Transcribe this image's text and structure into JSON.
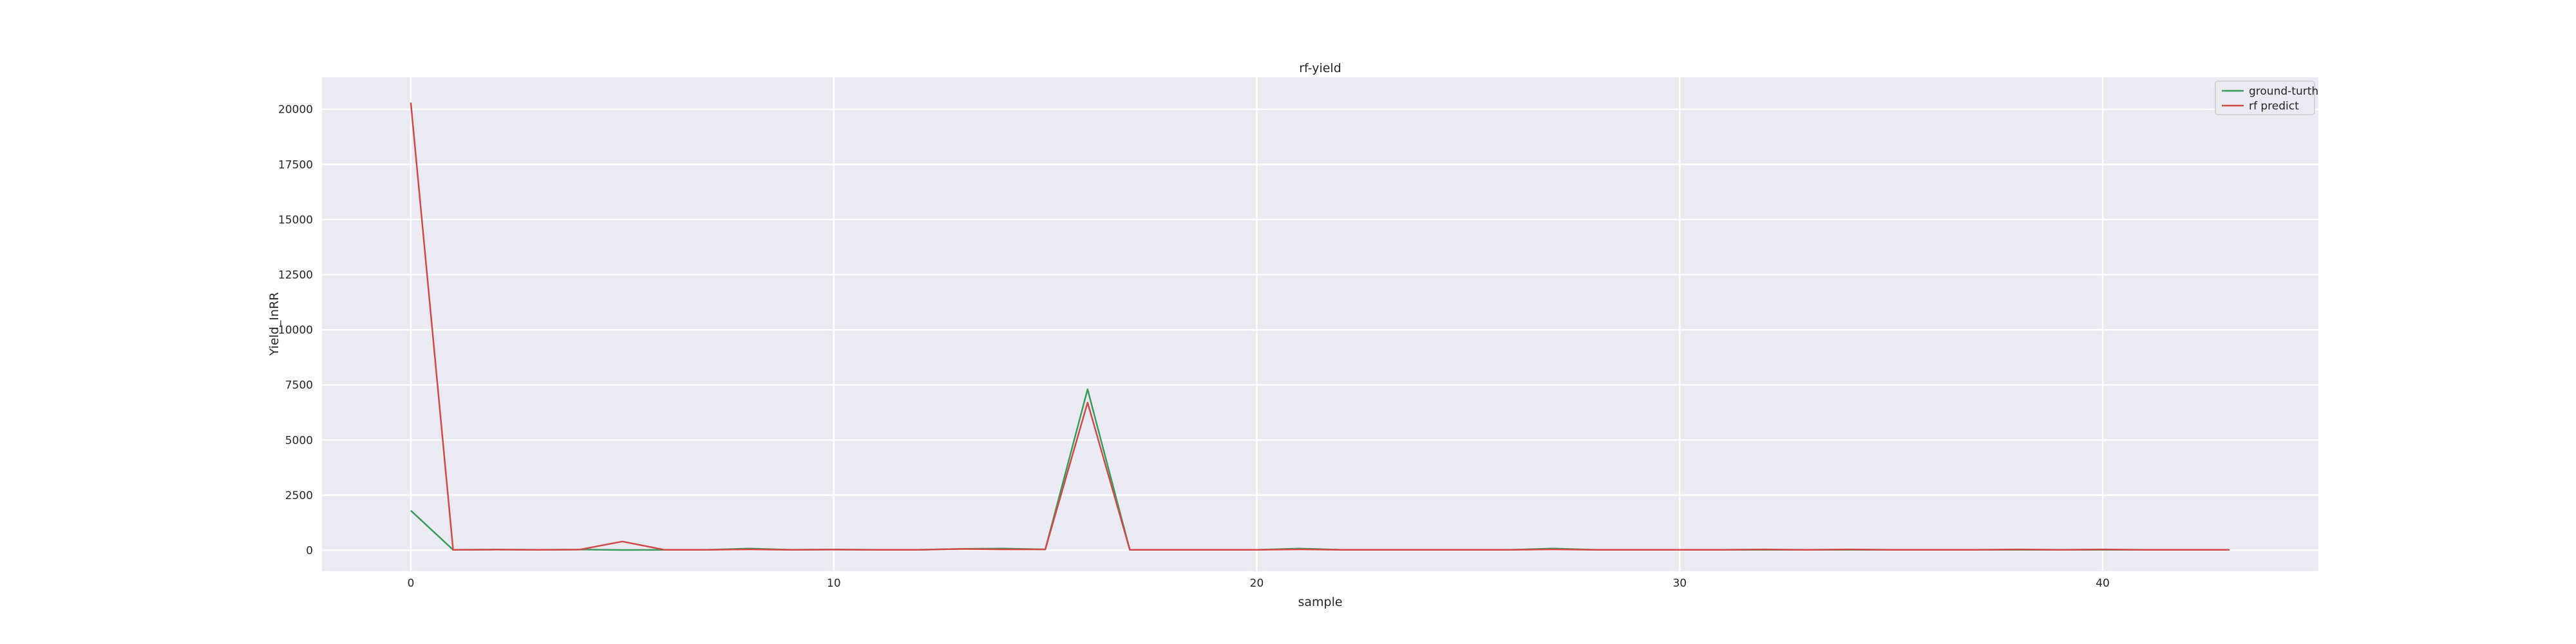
{
  "chart_data": {
    "type": "line",
    "title": "rf-yield",
    "xlabel": "sample",
    "ylabel": "Yield_InRR",
    "x": [
      0,
      1,
      2,
      3,
      4,
      5,
      6,
      7,
      8,
      9,
      10,
      11,
      12,
      13,
      14,
      15,
      16,
      17,
      18,
      19,
      20,
      21,
      22,
      23,
      24,
      25,
      26,
      27,
      28,
      29,
      30,
      31,
      32,
      33,
      34,
      35,
      36,
      37,
      38,
      39,
      40,
      41,
      42,
      43
    ],
    "series": [
      {
        "name": "ground-turth",
        "color": "#3a9b5c",
        "values": [
          1800,
          20,
          30,
          20,
          30,
          15,
          20,
          20,
          80,
          20,
          30,
          20,
          20,
          60,
          80,
          40,
          7300,
          20,
          20,
          20,
          20,
          80,
          20,
          20,
          20,
          20,
          20,
          80,
          20,
          20,
          20,
          20,
          20,
          20,
          20,
          20,
          20,
          20,
          20,
          20,
          20,
          20,
          20,
          20
        ]
      },
      {
        "name": "rf predict",
        "color": "#d14a4a",
        "values": [
          20300,
          20,
          30,
          20,
          30,
          400,
          20,
          20,
          40,
          20,
          30,
          20,
          20,
          60,
          40,
          40,
          6700,
          20,
          20,
          20,
          20,
          40,
          20,
          20,
          20,
          20,
          20,
          40,
          20,
          20,
          20,
          20,
          40,
          20,
          40,
          20,
          20,
          20,
          40,
          20,
          40,
          20,
          20,
          20
        ]
      }
    ],
    "xticks": [
      0,
      10,
      20,
      30,
      40
    ],
    "yticks": [
      0,
      2500,
      5000,
      7500,
      10000,
      12500,
      15000,
      17500,
      20000
    ],
    "xlim": [
      -2.1,
      45.1
    ],
    "ylim": [
      -950,
      21450
    ],
    "grid": true,
    "legend_position": "top-right"
  }
}
